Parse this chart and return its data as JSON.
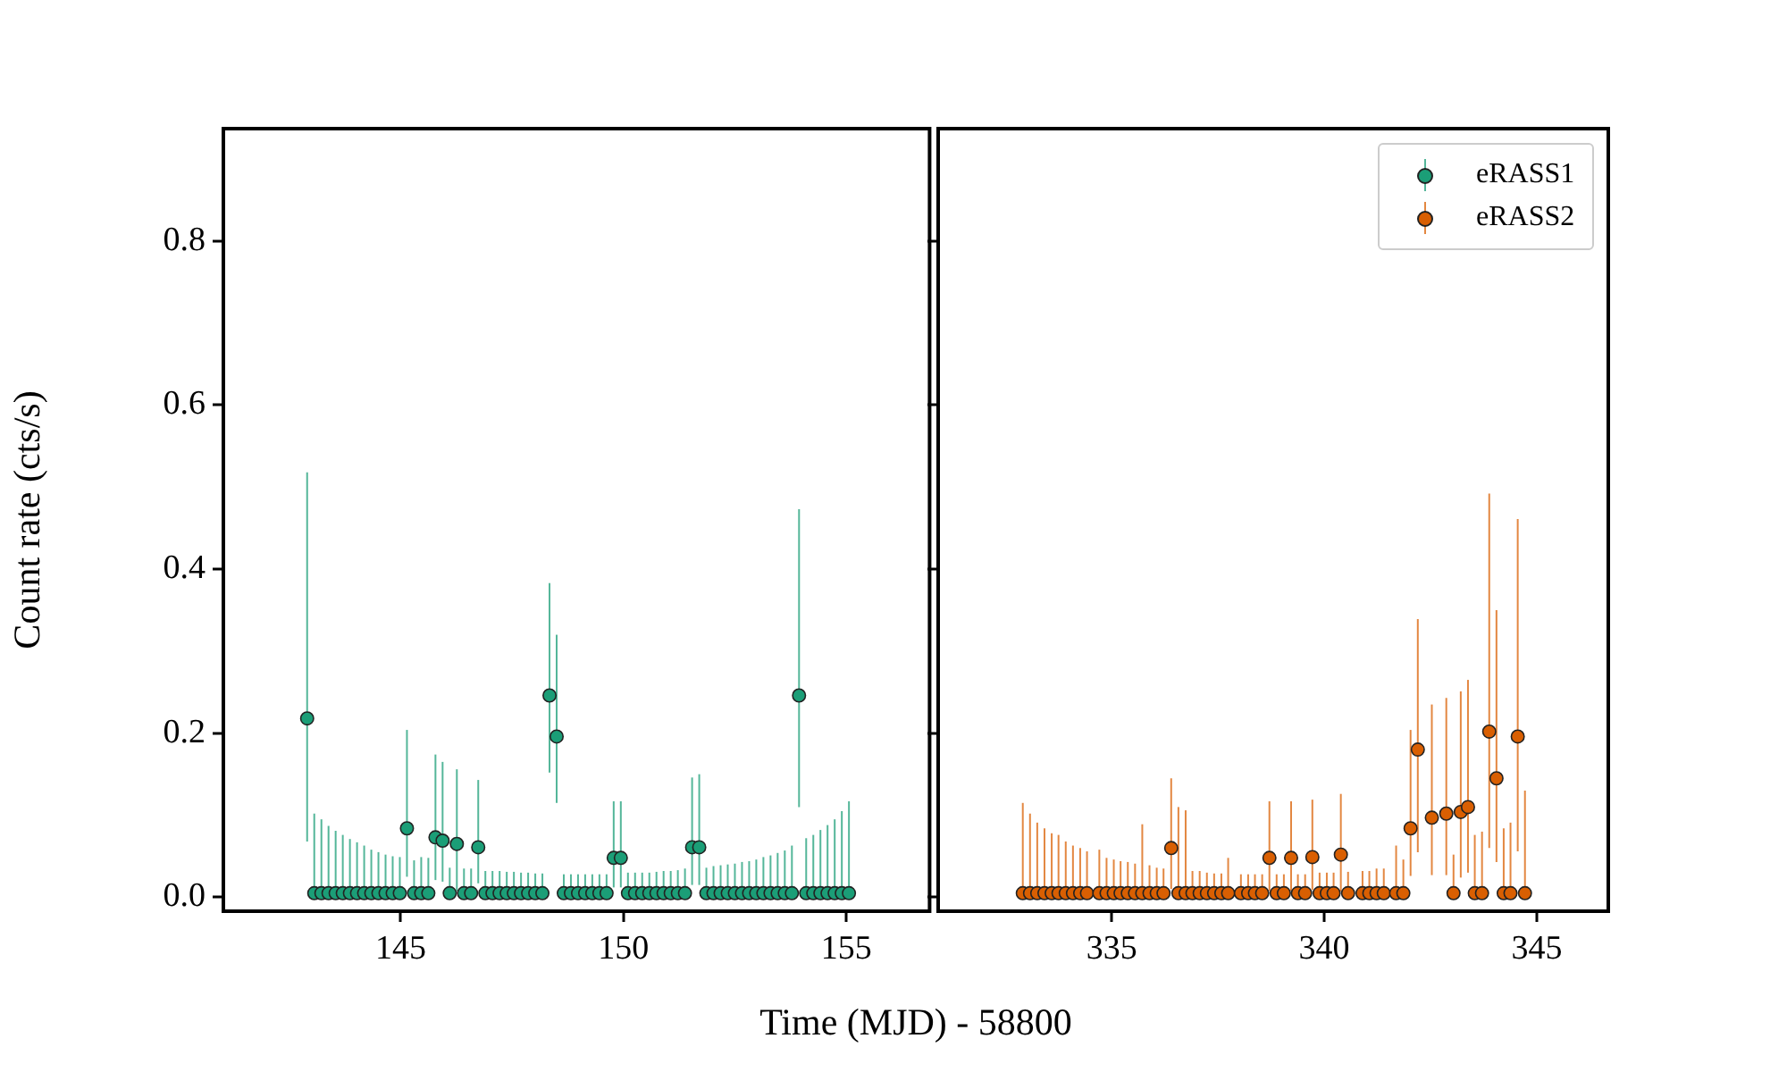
{
  "chart_data": [
    {
      "type": "scatter",
      "xlabel": "Time (MJD) - 58800",
      "ylabel": "Count rate (cts/s)",
      "xlim": [
        141.02,
        156.87
      ],
      "xticks": [
        145,
        150,
        155
      ],
      "ylim": [
        -0.017,
        0.937
      ],
      "yticks": [
        {
          "value": 0,
          "label": "0.0"
        },
        {
          "value": 0.2,
          "label": "0.2"
        },
        {
          "value": 0.4,
          "label": "0.4"
        },
        {
          "value": 0.6,
          "label": "0.6"
        },
        {
          "value": 0.8,
          "label": "0.8"
        }
      ],
      "grid": false,
      "marker": "circle",
      "series": [
        {
          "name": "eRASS1",
          "color": "#1b9e77",
          "x": [
            142.9,
            143.06,
            143.22,
            143.38,
            143.54,
            143.7,
            143.86,
            144.02,
            144.18,
            144.34,
            144.5,
            144.66,
            144.82,
            144.98,
            145.14,
            145.3,
            145.46,
            145.62,
            145.78,
            145.94,
            146.1,
            146.26,
            146.42,
            146.58,
            146.74,
            146.9,
            147.06,
            147.22,
            147.38,
            147.54,
            147.7,
            147.86,
            148.02,
            148.18,
            148.34,
            148.5,
            148.66,
            148.82,
            148.98,
            149.14,
            149.3,
            149.46,
            149.62,
            149.78,
            149.94,
            150.1,
            150.26,
            150.42,
            150.58,
            150.74,
            150.9,
            151.06,
            151.22,
            151.38,
            151.54,
            151.7,
            151.86,
            152.02,
            152.18,
            152.34,
            152.5,
            152.66,
            152.82,
            152.98,
            153.14,
            153.3,
            153.46,
            153.62,
            153.78,
            153.94,
            154.1,
            154.26,
            154.42,
            154.58,
            154.74,
            154.9,
            155.06
          ],
          "values": [
            0.218,
            0.005,
            0.005,
            0.005,
            0.005,
            0.005,
            0.005,
            0.005,
            0.005,
            0.005,
            0.005,
            0.005,
            0.005,
            0.005,
            0.084,
            0.005,
            0.005,
            0.005,
            0.073,
            0.069,
            0.005,
            0.065,
            0.005,
            0.005,
            0.061,
            0.005,
            0.005,
            0.005,
            0.005,
            0.005,
            0.005,
            0.005,
            0.005,
            0.005,
            0.246,
            0.196,
            0.005,
            0.005,
            0.005,
            0.005,
            0.005,
            0.005,
            0.005,
            0.048,
            0.048,
            0.005,
            0.005,
            0.005,
            0.005,
            0.005,
            0.005,
            0.005,
            0.005,
            0.005,
            0.061,
            0.061,
            0.005,
            0.005,
            0.005,
            0.005,
            0.005,
            0.005,
            0.005,
            0.005,
            0.005,
            0.005,
            0.005,
            0.005,
            0.005,
            0.246,
            0.005,
            0.005,
            0.005,
            0.005,
            0.005,
            0.005,
            0.005
          ],
          "errors": [
            [
              0.068,
              0.518
            ],
            [
              0,
              0.102
            ],
            [
              0,
              0.095
            ],
            [
              0,
              0.087
            ],
            [
              0,
              0.081
            ],
            [
              0,
              0.076
            ],
            [
              0,
              0.071
            ],
            [
              0,
              0.067
            ],
            [
              0,
              0.063
            ],
            [
              0,
              0.058
            ],
            [
              0,
              0.055
            ],
            [
              0,
              0.052
            ],
            [
              0,
              0.05
            ],
            [
              0,
              0.049
            ],
            [
              0.025,
              0.204
            ],
            [
              0,
              0.045
            ],
            [
              0,
              0.049
            ],
            [
              0,
              0.048
            ],
            [
              0.021,
              0.174
            ],
            [
              0.019,
              0.165
            ],
            [
              0,
              0.036
            ],
            [
              0.008,
              0.156
            ],
            [
              0,
              0.035
            ],
            [
              0,
              0.035
            ],
            [
              0.017,
              0.143
            ],
            [
              0,
              0.032
            ],
            [
              0,
              0.032
            ],
            [
              0,
              0.032
            ],
            [
              0,
              0.031
            ],
            [
              0,
              0.031
            ],
            [
              0,
              0.03
            ],
            [
              0,
              0.03
            ],
            [
              0,
              0.029
            ],
            [
              0,
              0.029
            ],
            [
              0.152,
              0.383
            ],
            [
              0.115,
              0.32
            ],
            [
              0,
              0.028
            ],
            [
              0,
              0.028
            ],
            [
              0,
              0.028
            ],
            [
              0,
              0.028
            ],
            [
              0,
              0.028
            ],
            [
              0,
              0.028
            ],
            [
              0,
              0.028
            ],
            [
              0.012,
              0.117
            ],
            [
              0.012,
              0.117
            ],
            [
              0,
              0.03
            ],
            [
              0,
              0.03
            ],
            [
              0,
              0.03
            ],
            [
              0,
              0.03
            ],
            [
              0,
              0.031
            ],
            [
              0,
              0.032
            ],
            [
              0,
              0.032
            ],
            [
              0,
              0.033
            ],
            [
              0,
              0.035
            ],
            [
              0.015,
              0.146
            ],
            [
              0.015,
              0.15
            ],
            [
              0,
              0.036
            ],
            [
              0,
              0.038
            ],
            [
              0,
              0.039
            ],
            [
              0,
              0.04
            ],
            [
              0,
              0.041
            ],
            [
              0,
              0.043
            ],
            [
              0,
              0.044
            ],
            [
              0,
              0.046
            ],
            [
              0,
              0.049
            ],
            [
              0,
              0.051
            ],
            [
              0,
              0.054
            ],
            [
              0,
              0.057
            ],
            [
              0,
              0.063
            ],
            [
              0.11,
              0.473
            ],
            [
              0,
              0.072
            ],
            [
              0,
              0.076
            ],
            [
              0,
              0.082
            ],
            [
              0,
              0.088
            ],
            [
              0,
              0.095
            ],
            [
              0,
              0.105
            ],
            [
              0,
              0.117
            ]
          ]
        }
      ]
    },
    {
      "type": "scatter",
      "xlim": [
        330.92,
        346.68
      ],
      "xticks": [
        335,
        340,
        345
      ],
      "ylim": [
        -0.017,
        0.937
      ],
      "yticks": [
        0,
        0.2,
        0.4,
        0.6,
        0.8
      ],
      "tick_labels": "x",
      "grid": false,
      "legend": "top right",
      "marker": "circle",
      "series": [
        {
          "name": "eRASS2",
          "color": "#d95f02",
          "x": [
            332.91,
            333.08,
            333.25,
            333.42,
            333.59,
            333.75,
            333.92,
            334.09,
            334.26,
            334.42,
            334.71,
            334.88,
            335.05,
            335.21,
            335.38,
            335.55,
            335.72,
            335.89,
            336.06,
            336.22,
            336.4,
            336.57,
            336.74,
            336.9,
            337.07,
            337.24,
            337.41,
            337.58,
            337.74,
            338.04,
            338.21,
            338.37,
            338.54,
            338.71,
            338.88,
            339.05,
            339.22,
            339.38,
            339.55,
            339.72,
            339.89,
            340.06,
            340.22,
            340.39,
            340.56,
            340.9,
            341.06,
            341.23,
            341.4,
            341.69,
            341.86,
            342.03,
            342.2,
            342.53,
            342.87,
            343.04,
            343.21,
            343.38,
            343.54,
            343.71,
            343.88,
            344.05,
            344.22,
            344.38,
            344.55,
            344.72
          ],
          "values": [
            0.005,
            0.005,
            0.005,
            0.005,
            0.005,
            0.005,
            0.005,
            0.005,
            0.005,
            0.005,
            0.005,
            0.005,
            0.005,
            0.005,
            0.005,
            0.005,
            0.005,
            0.005,
            0.005,
            0.005,
            0.06,
            0.005,
            0.005,
            0.005,
            0.005,
            0.005,
            0.005,
            0.005,
            0.005,
            0.005,
            0.005,
            0.005,
            0.005,
            0.048,
            0.005,
            0.005,
            0.048,
            0.005,
            0.005,
            0.049,
            0.005,
            0.005,
            0.005,
            0.052,
            0.005,
            0.005,
            0.005,
            0.005,
            0.005,
            0.005,
            0.005,
            0.084,
            0.18,
            0.097,
            0.102,
            0.005,
            0.104,
            0.11,
            0.005,
            0.005,
            0.202,
            0.145,
            0.005,
            0.005,
            0.196,
            0.005
          ],
          "errors": [
            [
              0,
              0.115
            ],
            [
              0,
              0.102
            ],
            [
              0,
              0.091
            ],
            [
              0,
              0.084
            ],
            [
              0,
              0.078
            ],
            [
              0,
              0.076
            ],
            [
              0,
              0.068
            ],
            [
              0,
              0.063
            ],
            [
              0,
              0.06
            ],
            [
              0,
              0.056
            ],
            [
              0,
              0.058
            ],
            [
              0,
              0.048
            ],
            [
              0,
              0.046
            ],
            [
              0,
              0.044
            ],
            [
              0,
              0.043
            ],
            [
              0,
              0.041
            ],
            [
              0,
              0.089
            ],
            [
              0,
              0.039
            ],
            [
              0,
              0.036
            ],
            [
              0,
              0.035
            ],
            [
              0.01,
              0.145
            ],
            [
              0,
              0.11
            ],
            [
              0,
              0.106
            ],
            [
              0,
              0.032
            ],
            [
              0,
              0.032
            ],
            [
              0,
              0.03
            ],
            [
              0,
              0.029
            ],
            [
              0,
              0.029
            ],
            [
              0,
              0.048
            ],
            [
              0,
              0.028
            ],
            [
              0,
              0.028
            ],
            [
              0,
              0.028
            ],
            [
              0,
              0.028
            ],
            [
              0.008,
              0.117
            ],
            [
              0,
              0.028
            ],
            [
              0,
              0.028
            ],
            [
              0.008,
              0.117
            ],
            [
              0,
              0.028
            ],
            [
              0,
              0.028
            ],
            [
              0.009,
              0.119
            ],
            [
              0,
              0.03
            ],
            [
              0,
              0.03
            ],
            [
              0,
              0.03
            ],
            [
              0.007,
              0.126
            ],
            [
              0,
              0.031
            ],
            [
              0,
              0.032
            ],
            [
              0,
              0.032
            ],
            [
              0,
              0.035
            ],
            [
              0,
              0.035
            ],
            [
              0,
              0.063
            ],
            [
              0,
              0.046
            ],
            [
              0.026,
              0.204
            ],
            [
              0.055,
              0.339
            ],
            [
              0.027,
              0.235
            ],
            [
              0.027,
              0.243
            ],
            [
              0,
              0.052
            ],
            [
              0.024,
              0.251
            ],
            [
              0.03,
              0.265
            ],
            [
              0,
              0.076
            ],
            [
              0,
              0.08
            ],
            [
              0.06,
              0.492
            ],
            [
              0.043,
              0.35
            ],
            [
              0,
              0.084
            ],
            [
              0,
              0.091
            ],
            [
              0.056,
              0.461
            ],
            [
              0,
              0.13
            ]
          ]
        }
      ]
    }
  ]
}
